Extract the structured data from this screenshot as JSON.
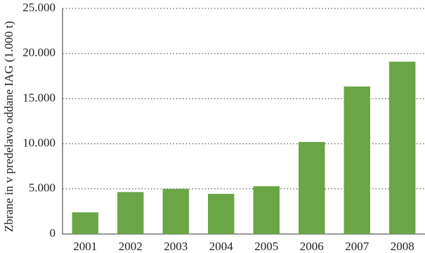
{
  "chart_data": {
    "type": "bar",
    "y_label": "Zbrane in v predelavo oddane IAG (1.000 t)",
    "categories": [
      "2001",
      "2002",
      "2003",
      "2004",
      "2005",
      "2006",
      "2007",
      "2008"
    ],
    "values": [
      2400,
      4650,
      5000,
      4450,
      5300,
      10200,
      16350,
      19100
    ],
    "color": "#6aa546",
    "ylim": [
      0,
      25000
    ],
    "yticks": [
      0,
      {
        "value": 5000,
        "label": "5.000"
      },
      {
        "value": 10000,
        "label": "10.000"
      },
      {
        "value": 15000,
        "label": "15.000"
      },
      {
        "value": 20000,
        "label": "20.000"
      },
      {
        "value": 25000,
        "label": "25.000"
      }
    ],
    "grid": true
  }
}
